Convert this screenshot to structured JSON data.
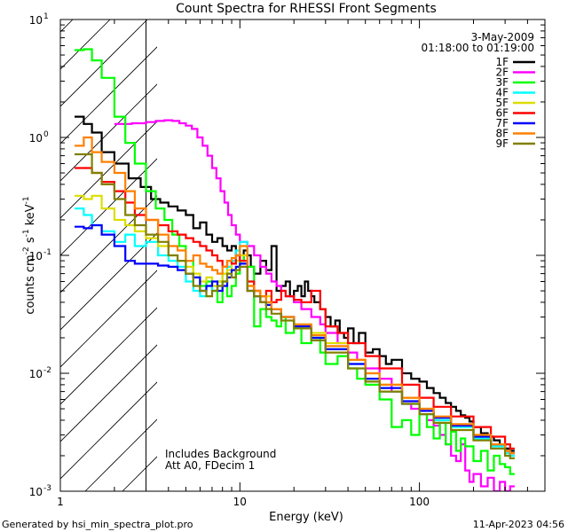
{
  "chart_data": {
    "type": "line",
    "title": "Count Spectra for RHESSI Front Segments",
    "xlabel": "Energy (keV)",
    "ylabel": "counts cm",
    "ylabel_parts": [
      "counts cm",
      "-2",
      " s",
      "-1",
      " keV",
      "-1"
    ],
    "xscale": "log",
    "yscale": "log",
    "xlim": [
      1,
      500
    ],
    "ylim": [
      0.001,
      10
    ],
    "x_ticks": [
      {
        "v": 1,
        "label": "1"
      },
      {
        "v": 10,
        "label": "10"
      },
      {
        "v": 100,
        "label": "100"
      }
    ],
    "y_ticks": [
      {
        "v": 0.001,
        "base": "10",
        "exp": "-3"
      },
      {
        "v": 0.01,
        "base": "10",
        "exp": "-2"
      },
      {
        "v": 0.1,
        "base": "10",
        "exp": "-1"
      },
      {
        "v": 1,
        "base": "10",
        "exp": "0"
      },
      {
        "v": 10,
        "base": "10",
        "exp": "1"
      }
    ],
    "date": "3-May-2009",
    "time_range": "01:18:00 to 01:19:00",
    "excluded_region_max_kev": 3,
    "annotations": [
      "Includes Background",
      "Att A0, FDecim 1"
    ],
    "footer_left": "Generated by hsi_min_spectra_plot.pro",
    "footer_right": "11-Apr-2023 04:56",
    "series": [
      {
        "name": "1F",
        "color": "#000000",
        "x": [
          1.2,
          1.35,
          1.5,
          1.7,
          2.0,
          2.4,
          2.8,
          3.2,
          3.6,
          4.0,
          4.5,
          5.0,
          5.5,
          6.0,
          6.5,
          7.0,
          7.5,
          8.0,
          8.5,
          9.0,
          9.5,
          10,
          10.5,
          11,
          11.5,
          12,
          13,
          14,
          15,
          16,
          17,
          18,
          19,
          20,
          21,
          22,
          23,
          24,
          25,
          26,
          28,
          30,
          32,
          34,
          36,
          38,
          40,
          43,
          46,
          50,
          55,
          60,
          65,
          70,
          80,
          90,
          100,
          110,
          120,
          130,
          140,
          150,
          160,
          170,
          180,
          190,
          200,
          220,
          240,
          260,
          280,
          300,
          320
        ],
        "values": [
          1.5,
          1.3,
          1.1,
          0.75,
          0.6,
          0.45,
          0.38,
          0.3,
          0.28,
          0.26,
          0.24,
          0.22,
          0.17,
          0.19,
          0.15,
          0.13,
          0.14,
          0.12,
          0.11,
          0.12,
          0.1,
          0.09,
          0.11,
          0.1,
          0.08,
          0.07,
          0.09,
          0.075,
          0.12,
          0.05,
          0.055,
          0.06,
          0.045,
          0.05,
          0.055,
          0.045,
          0.06,
          0.05,
          0.045,
          0.04,
          0.035,
          0.03,
          0.025,
          0.028,
          0.022,
          0.02,
          0.024,
          0.018,
          0.022,
          0.015,
          0.016,
          0.014,
          0.012,
          0.013,
          0.01,
          0.009,
          0.0085,
          0.0075,
          0.0068,
          0.0062,
          0.0056,
          0.0052,
          0.0048,
          0.0044,
          0.0042,
          0.0039,
          0.0035,
          0.0031,
          0.0029,
          0.0027,
          0.0025,
          0.0023,
          0.0022
        ]
      },
      {
        "name": "2F",
        "color": "#ff00ff",
        "x": [
          2.0,
          2.5,
          3.0,
          3.4,
          3.8,
          4.2,
          4.6,
          5.0,
          5.4,
          5.8,
          6.2,
          6.6,
          7.0,
          7.4,
          7.8,
          8.2,
          8.6,
          9.0,
          9.5,
          10,
          11,
          12,
          13,
          14,
          15,
          16,
          17,
          18,
          20,
          22,
          25,
          28,
          30,
          35,
          40,
          45,
          50,
          60,
          70,
          80,
          90,
          100,
          110,
          120,
          130,
          140,
          150,
          160,
          170,
          180,
          190,
          200,
          220,
          240,
          260,
          280,
          300,
          320
        ],
        "values": [
          1.3,
          1.32,
          1.35,
          1.38,
          1.4,
          1.38,
          1.32,
          1.26,
          1.18,
          1.0,
          0.85,
          0.7,
          0.55,
          0.45,
          0.35,
          0.28,
          0.22,
          0.18,
          0.15,
          0.13,
          0.12,
          0.1,
          0.08,
          0.07,
          0.06,
          0.055,
          0.05,
          0.045,
          0.04,
          0.035,
          0.03,
          0.026,
          0.022,
          0.018,
          0.015,
          0.013,
          0.011,
          0.009,
          0.007,
          0.0055,
          0.005,
          0.0045,
          0.004,
          0.0036,
          0.003,
          0.0025,
          0.002,
          0.0018,
          0.0025,
          0.0015,
          0.0012,
          0.0014,
          0.0011,
          0.0013,
          0.001,
          0.0012,
          0.001,
          0.0011
        ]
      },
      {
        "name": "3F",
        "color": "#00ff00",
        "x": [
          1.2,
          1.35,
          1.5,
          1.7,
          2.0,
          2.3,
          2.6,
          3.0,
          3.4,
          3.8,
          4.2,
          4.6,
          5.0,
          5.5,
          6.0,
          6.5,
          7.0,
          7.5,
          8.0,
          8.5,
          9.0,
          9.5,
          10,
          10.5,
          11,
          12,
          13,
          14,
          15,
          16,
          17,
          18,
          20,
          22,
          25,
          28,
          30,
          35,
          40,
          45,
          50,
          60,
          70,
          80,
          90,
          100,
          110,
          120,
          130,
          140,
          150,
          160,
          170,
          180,
          200,
          220,
          240,
          260,
          280,
          300,
          320
        ],
        "values": [
          5.5,
          5.6,
          4.5,
          3.2,
          1.5,
          0.9,
          0.6,
          0.35,
          0.25,
          0.2,
          0.15,
          0.12,
          0.09,
          0.065,
          0.055,
          0.06,
          0.05,
          0.04,
          0.06,
          0.045,
          0.055,
          0.07,
          0.09,
          0.1,
          0.08,
          0.025,
          0.035,
          0.03,
          0.028,
          0.025,
          0.03,
          0.022,
          0.025,
          0.018,
          0.02,
          0.015,
          0.012,
          0.014,
          0.011,
          0.009,
          0.008,
          0.006,
          0.0035,
          0.004,
          0.003,
          0.0045,
          0.0035,
          0.0028,
          0.0038,
          0.0025,
          0.0032,
          0.0022,
          0.0028,
          0.0024,
          0.0018,
          0.0022,
          0.0015,
          0.002,
          0.0017,
          0.0016,
          0.0014
        ]
      },
      {
        "name": "4F",
        "color": "#00ffff",
        "x": [
          1.2,
          1.35,
          1.5,
          1.7,
          2.0,
          2.3,
          2.6,
          3.0,
          3.5,
          4.0,
          4.5,
          5.0,
          5.5,
          6.0,
          6.5,
          7.0,
          7.5,
          8.0,
          8.5,
          9.0,
          9.5,
          10,
          11,
          12,
          13,
          14,
          15,
          17,
          20,
          25,
          30,
          40,
          50,
          60,
          80,
          100,
          120,
          150,
          200,
          250,
          300,
          320
        ],
        "values": [
          0.25,
          0.22,
          0.18,
          0.16,
          0.13,
          0.15,
          0.12,
          0.13,
          0.1,
          0.09,
          0.08,
          0.06,
          0.05,
          0.045,
          0.055,
          0.05,
          0.06,
          0.07,
          0.08,
          0.09,
          0.11,
          0.13,
          0.06,
          0.05,
          0.045,
          0.04,
          0.035,
          0.03,
          0.025,
          0.02,
          0.016,
          0.012,
          0.009,
          0.007,
          0.0055,
          0.0045,
          0.004,
          0.0035,
          0.0028,
          0.0024,
          0.0021,
          0.002
        ]
      },
      {
        "name": "5F",
        "color": "#dddd00",
        "x": [
          1.2,
          1.35,
          1.5,
          1.7,
          2.0,
          2.3,
          2.6,
          3.0,
          3.5,
          4.0,
          4.5,
          5.0,
          5.5,
          6.0,
          6.5,
          7.0,
          7.5,
          8.0,
          8.5,
          9.0,
          9.5,
          10,
          11,
          12,
          13,
          14,
          15,
          17,
          20,
          25,
          30,
          40,
          50,
          60,
          80,
          100,
          120,
          150,
          200,
          250,
          300,
          320
        ],
        "values": [
          0.32,
          0.3,
          0.32,
          0.25,
          0.2,
          0.18,
          0.16,
          0.14,
          0.12,
          0.1,
          0.09,
          0.08,
          0.07,
          0.06,
          0.065,
          0.055,
          0.06,
          0.07,
          0.075,
          0.085,
          0.09,
          0.1,
          0.055,
          0.05,
          0.04,
          0.045,
          0.035,
          0.03,
          0.026,
          0.022,
          0.018,
          0.013,
          0.01,
          0.008,
          0.0062,
          0.005,
          0.0042,
          0.0036,
          0.003,
          0.0025,
          0.0022,
          0.0021
        ]
      },
      {
        "name": "6F",
        "color": "#ff0000",
        "x": [
          1.2,
          1.35,
          1.5,
          1.7,
          2.0,
          2.3,
          2.6,
          3.0,
          3.5,
          4.0,
          4.5,
          5.0,
          5.5,
          6.0,
          6.5,
          7.0,
          7.5,
          8.0,
          8.5,
          9.0,
          9.5,
          10,
          11,
          12,
          13,
          14,
          15,
          16,
          17,
          18,
          20,
          22,
          25,
          28,
          30,
          35,
          40,
          50,
          60,
          80,
          100,
          120,
          150,
          200,
          250,
          300,
          320
        ],
        "values": [
          0.55,
          0.55,
          0.5,
          0.42,
          0.35,
          0.28,
          0.22,
          0.2,
          0.18,
          0.16,
          0.15,
          0.14,
          0.13,
          0.12,
          0.11,
          0.1,
          0.09,
          0.08,
          0.09,
          0.085,
          0.1,
          0.09,
          0.06,
          0.05,
          0.045,
          0.05,
          0.04,
          0.042,
          0.05,
          0.045,
          0.042,
          0.04,
          0.05,
          0.035,
          0.025,
          0.022,
          0.018,
          0.014,
          0.011,
          0.008,
          0.0062,
          0.0052,
          0.0043,
          0.0035,
          0.0029,
          0.0025,
          0.0023
        ]
      },
      {
        "name": "7F",
        "color": "#0000ff",
        "x": [
          1.2,
          1.35,
          1.5,
          1.7,
          2.0,
          2.3,
          2.6,
          3.0,
          3.5,
          4.0,
          4.5,
          5.0,
          5.5,
          6.0,
          6.5,
          7.0,
          7.5,
          8.0,
          8.5,
          9.0,
          9.5,
          10,
          11,
          12,
          13,
          14,
          15,
          17,
          20,
          25,
          30,
          40,
          50,
          60,
          80,
          100,
          120,
          150,
          200,
          250,
          300,
          320
        ],
        "values": [
          0.175,
          0.17,
          0.18,
          0.15,
          0.12,
          0.09,
          0.085,
          0.085,
          0.082,
          0.08,
          0.075,
          0.07,
          0.065,
          0.05,
          0.055,
          0.06,
          0.05,
          0.055,
          0.065,
          0.075,
          0.08,
          0.085,
          0.05,
          0.045,
          0.04,
          0.038,
          0.035,
          0.03,
          0.025,
          0.02,
          0.016,
          0.012,
          0.009,
          0.0075,
          0.0058,
          0.0048,
          0.0042,
          0.0036,
          0.0029,
          0.0025,
          0.0022,
          0.0021
        ]
      },
      {
        "name": "8F",
        "color": "#ff8000",
        "x": [
          1.2,
          1.35,
          1.5,
          1.7,
          2.0,
          2.3,
          2.6,
          3.0,
          3.5,
          4.0,
          4.5,
          5.0,
          5.5,
          6.0,
          6.5,
          7.0,
          7.5,
          8.0,
          8.5,
          9.0,
          9.5,
          10,
          11,
          12,
          13,
          14,
          15,
          17,
          20,
          25,
          30,
          40,
          50,
          60,
          80,
          100,
          120,
          150,
          200,
          250,
          300,
          320
        ],
        "values": [
          0.85,
          1.0,
          0.75,
          0.62,
          0.5,
          0.35,
          0.25,
          0.2,
          0.15,
          0.12,
          0.11,
          0.09,
          0.1,
          0.085,
          0.08,
          0.075,
          0.07,
          0.08,
          0.09,
          0.095,
          0.1,
          0.12,
          0.055,
          0.05,
          0.045,
          0.04,
          0.035,
          0.03,
          0.026,
          0.021,
          0.017,
          0.013,
          0.01,
          0.008,
          0.0062,
          0.005,
          0.0043,
          0.0037,
          0.003,
          0.0025,
          0.0022,
          0.0021
        ]
      },
      {
        "name": "9F",
        "color": "#808000",
        "x": [
          1.2,
          1.35,
          1.5,
          1.7,
          2.0,
          2.3,
          2.6,
          3.0,
          3.5,
          4.0,
          4.5,
          5.0,
          5.5,
          6.0,
          6.5,
          7.0,
          7.5,
          8.0,
          8.5,
          9.0,
          9.5,
          10,
          11,
          12,
          13,
          14,
          15,
          17,
          20,
          25,
          30,
          40,
          50,
          60,
          80,
          100,
          120,
          150,
          200,
          250,
          300,
          320
        ],
        "values": [
          0.72,
          0.72,
          0.5,
          0.4,
          0.3,
          0.22,
          0.18,
          0.15,
          0.13,
          0.1,
          0.09,
          0.07,
          0.055,
          0.05,
          0.045,
          0.05,
          0.055,
          0.06,
          0.07,
          0.065,
          0.075,
          0.08,
          0.05,
          0.045,
          0.04,
          0.035,
          0.032,
          0.028,
          0.024,
          0.019,
          0.015,
          0.011,
          0.0085,
          0.007,
          0.0055,
          0.0045,
          0.0038,
          0.0033,
          0.0027,
          0.0023,
          0.002,
          0.0019
        ]
      }
    ]
  }
}
